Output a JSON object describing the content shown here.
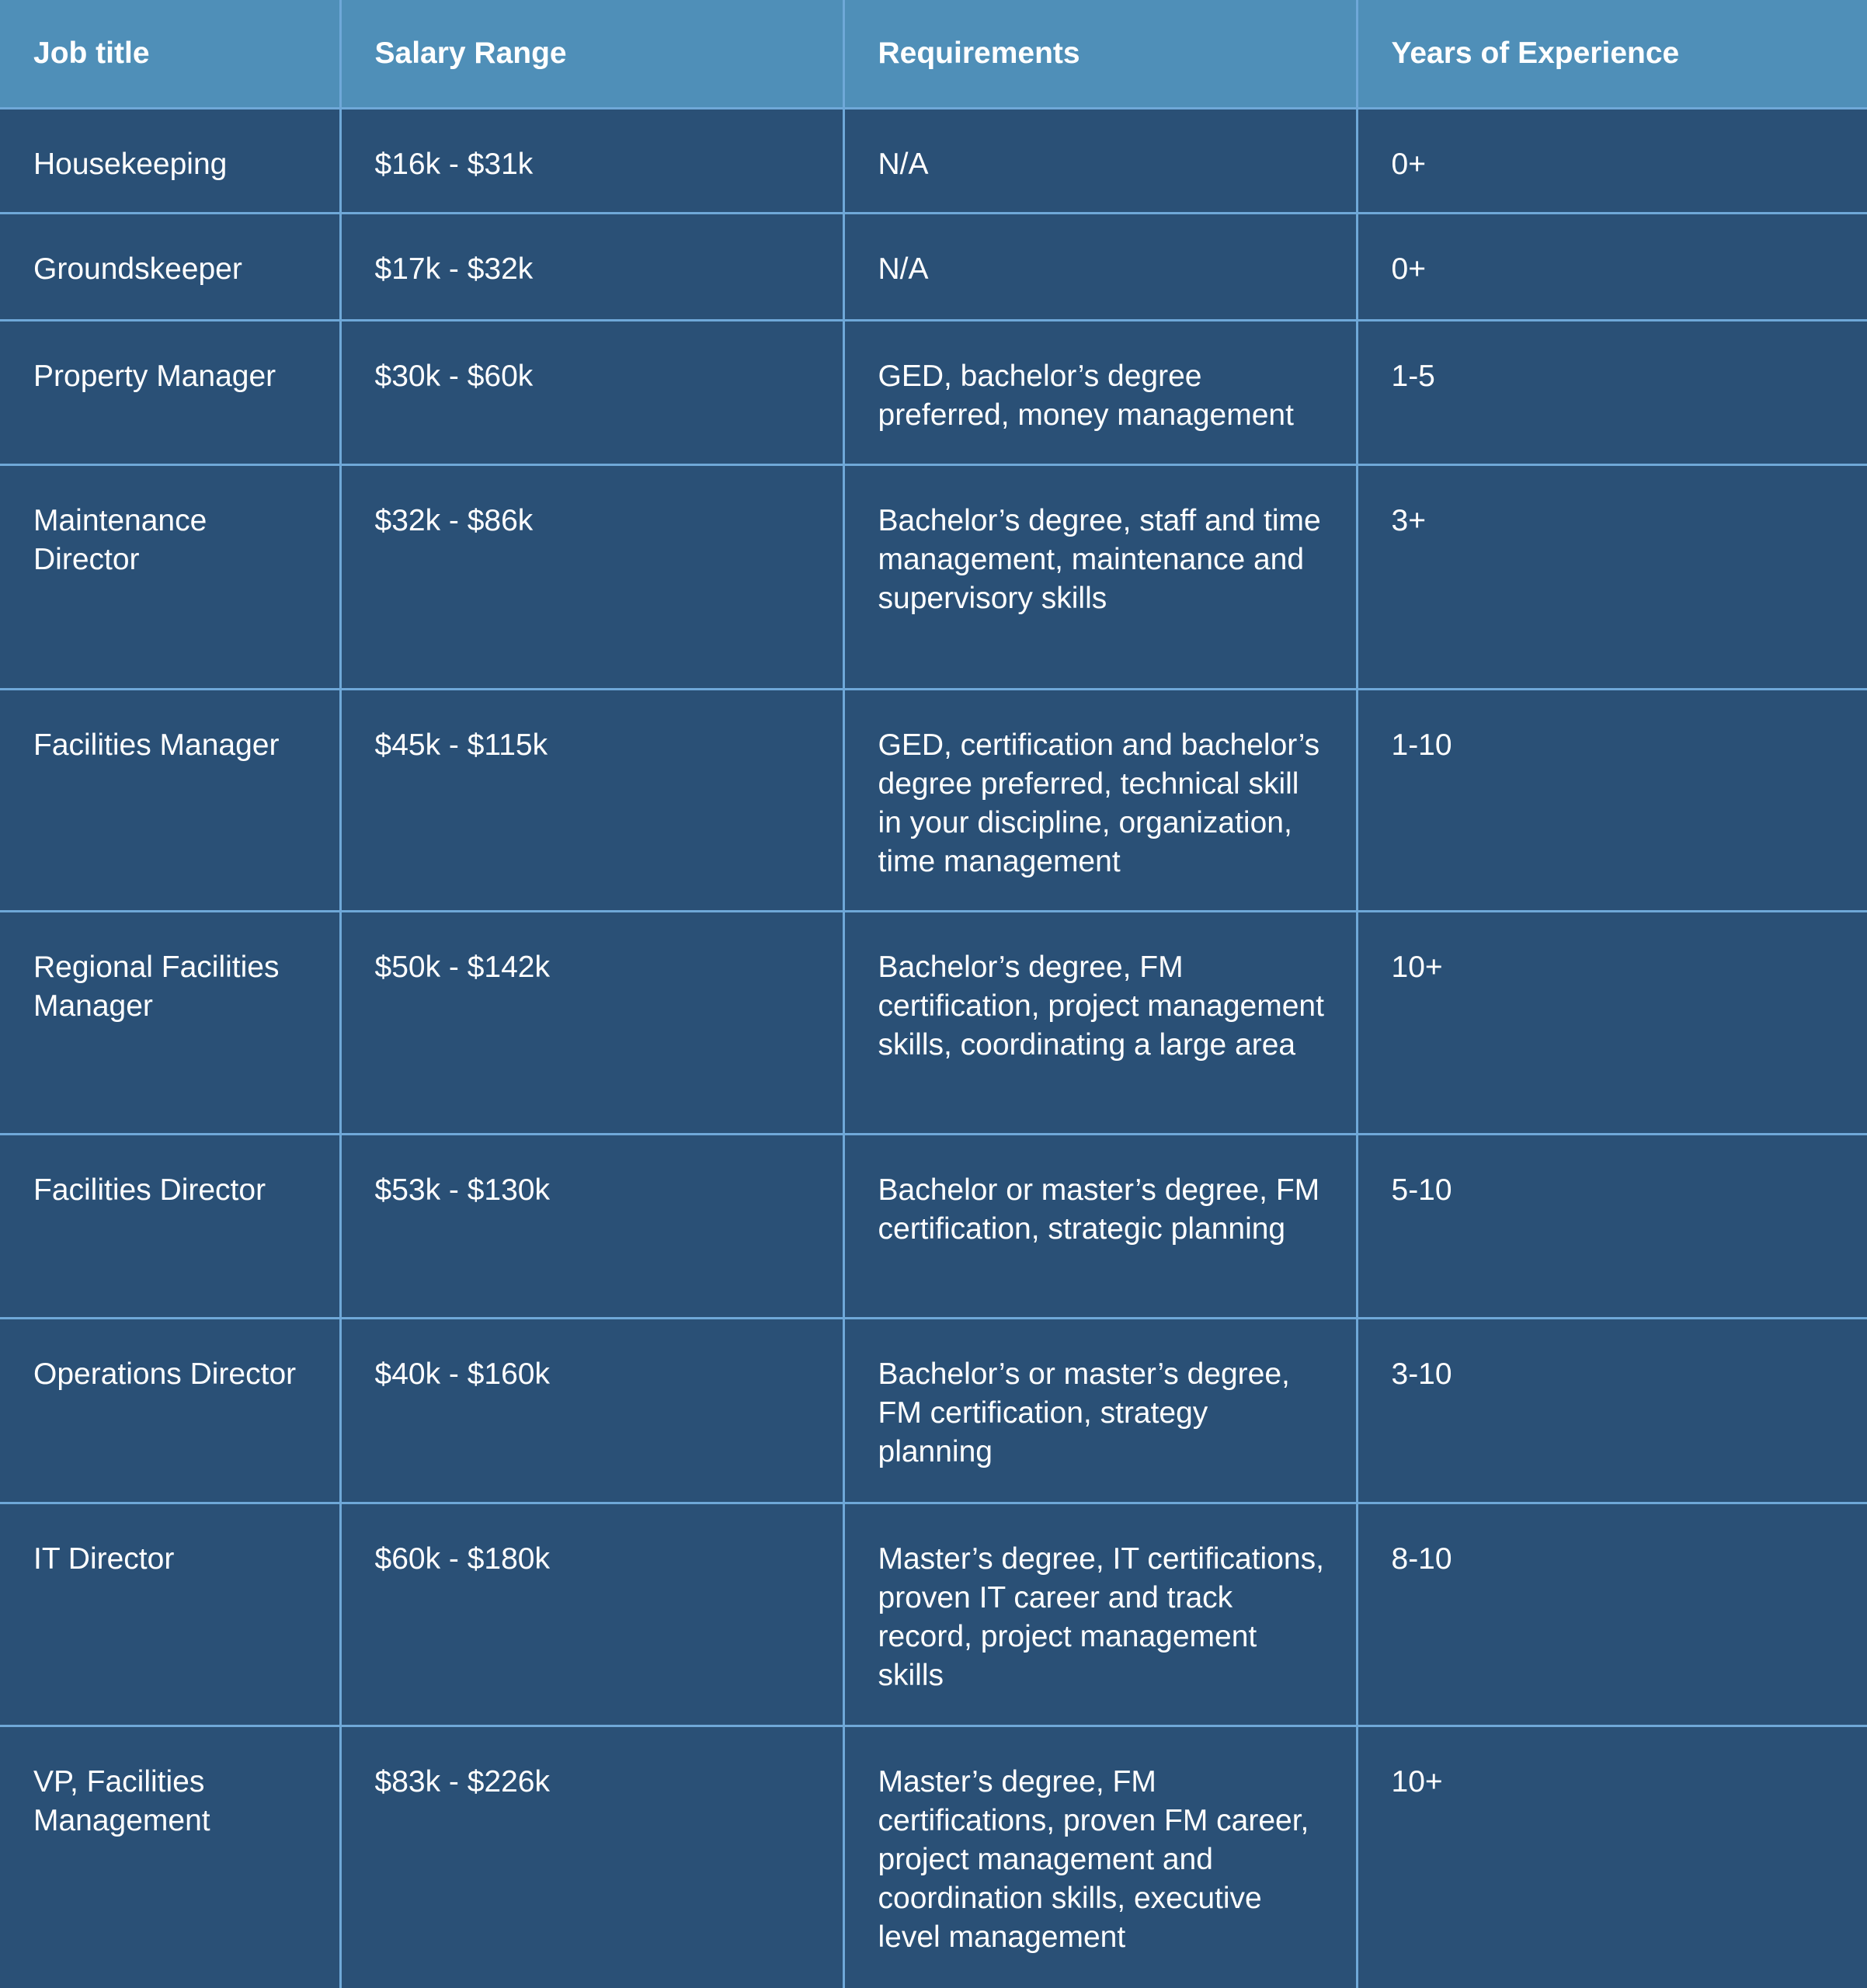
{
  "table": {
    "headers": [
      "Job title",
      "Salary Range",
      "Requirements",
      "Years of Experience"
    ],
    "rows": [
      [
        "Housekeeping",
        "$16k - $31k",
        "N/A",
        "0+"
      ],
      [
        "Groundskeeper",
        "$17k - $32k",
        "N/A",
        "0+"
      ],
      [
        "Property Manager",
        "$30k - $60k",
        "GED, bachelor’s degree preferred, money management",
        "1-5"
      ],
      [
        "Maintenance Director",
        "$32k - $86k",
        "Bachelor’s degree, staff and time management, maintenance and supervisory skills",
        "3+"
      ],
      [
        "Facilities Manager",
        "$45k - $115k",
        "GED, certification and bachelor’s degree preferred, technical skill in your discipline, organization, time management",
        "1-10"
      ],
      [
        "Regional Facilities Manager",
        "$50k - $142k",
        "Bachelor’s degree, FM certification,  project management skills, coordinating a large area",
        "10+"
      ],
      [
        "Facilities Director",
        "$53k - $130k",
        "Bachelor or master’s degree, FM certification, strategic planning",
        "5-10"
      ],
      [
        "Operations Director",
        "$40k - $160k",
        "Bachelor’s or master’s degree, FM certification, strategy planning",
        "3-10"
      ],
      [
        "IT Director",
        "$60k - $180k",
        "Master’s degree, IT certifications, proven IT career and track record, project management skills",
        "8-10"
      ],
      [
        "VP, Facilities Management",
        "$83k - $226k",
        "Master’s degree, FM certifications, proven FM career, project management and coordination skills, executive level management",
        "10+"
      ]
    ]
  },
  "colors": {
    "header_bg": "#4f8fb8",
    "body_bg": "#2a5076",
    "border": "#6fa8d8",
    "text": "#ffffff"
  }
}
